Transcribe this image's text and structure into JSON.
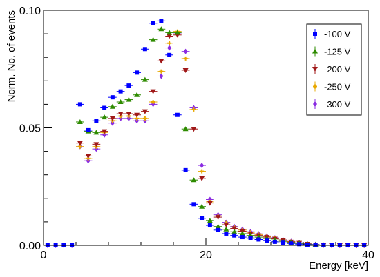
{
  "chart_data": {
    "type": "scatter",
    "xlabel": "Energy [keV]",
    "ylabel": "Norm. No. of events",
    "xlim": [
      0,
      40
    ],
    "ylim": [
      0,
      0.1
    ],
    "x_ticks": [
      "0",
      "20",
      "40"
    ],
    "y_ticks": [
      "0.00",
      "0.05",
      "0.10"
    ],
    "grid": false,
    "legend_position": "top-right",
    "series": [
      {
        "name": "-100 V",
        "color": "#0000ff",
        "marker": "square",
        "x": [
          0.5,
          1.5,
          2.5,
          3.5,
          4.5,
          5.5,
          6.5,
          7.5,
          8.5,
          9.5,
          10.5,
          11.5,
          12.5,
          13.5,
          14.5,
          15.5,
          16.5,
          17.5,
          18.5,
          19.5,
          20.5,
          21.5,
          22.5,
          23.5,
          24.5,
          25.5,
          26.5,
          27.5,
          28.5,
          29.5,
          30.5,
          31.5,
          32.5,
          33.5,
          34.5,
          35.5,
          36.5,
          37.5,
          38.5,
          39.5
        ],
        "y": [
          0.0,
          0.0,
          0.0,
          0.0,
          0.06,
          0.049,
          0.053,
          0.0585,
          0.063,
          0.0655,
          0.068,
          0.0735,
          0.0835,
          0.0945,
          0.0955,
          0.081,
          0.0555,
          0.032,
          0.0175,
          0.0115,
          0.0085,
          0.0065,
          0.005,
          0.0042,
          0.0035,
          0.003,
          0.0025,
          0.002,
          0.0015,
          0.0011,
          0.0008,
          0.0005,
          0.0003,
          0.0002,
          0.0001,
          0.0,
          0.0,
          0.0,
          0.0,
          0.0
        ]
      },
      {
        "name": "-125 V",
        "color": "#2e8b00",
        "marker": "triangle-up",
        "x": [
          4.5,
          5.5,
          6.5,
          7.5,
          8.5,
          9.5,
          10.5,
          11.5,
          12.5,
          13.5,
          14.5,
          15.5,
          16.5,
          17.5,
          18.5,
          19.5,
          20.5,
          21.5,
          22.5,
          23.5,
          24.5,
          25.5,
          26.5,
          27.5,
          28.5,
          29.5,
          30.5,
          31.5,
          32.5,
          33.5,
          34.5,
          35.5,
          36.5,
          37.5,
          38.5,
          39.5
        ],
        "y": [
          0.0525,
          0.0485,
          0.048,
          0.0545,
          0.059,
          0.061,
          0.062,
          0.064,
          0.0705,
          0.0875,
          0.092,
          0.0905,
          0.0905,
          0.0495,
          0.0278,
          0.0165,
          0.0105,
          0.008,
          0.0068,
          0.0058,
          0.005,
          0.0042,
          0.0035,
          0.0029,
          0.0023,
          0.0017,
          0.0012,
          0.0008,
          0.0005,
          0.0003,
          0.0001,
          0.0,
          0.0,
          0.0,
          0.0,
          0.0
        ]
      },
      {
        "name": "-200 V",
        "color": "#a01818",
        "marker": "triangle-down",
        "x": [
          4.5,
          5.5,
          6.5,
          7.5,
          8.5,
          9.5,
          10.5,
          11.5,
          12.5,
          13.5,
          14.5,
          15.5,
          16.5,
          17.5,
          18.5,
          19.5,
          20.5,
          21.5,
          22.5,
          23.5,
          24.5,
          25.5,
          26.5,
          27.5,
          28.5,
          29.5,
          30.5,
          31.5,
          32.5,
          33.5,
          34.5,
          35.5,
          36.5,
          37.5,
          38.5,
          39.5
        ],
        "y": [
          0.0435,
          0.038,
          0.043,
          0.0485,
          0.054,
          0.056,
          0.056,
          0.0555,
          0.057,
          0.0655,
          0.0785,
          0.089,
          0.0895,
          0.0745,
          0.0495,
          0.0285,
          0.018,
          0.012,
          0.0088,
          0.0072,
          0.006,
          0.005,
          0.0042,
          0.0035,
          0.0028,
          0.0021,
          0.0015,
          0.001,
          0.0006,
          0.0003,
          0.0001,
          0.0,
          0.0,
          0.0,
          0.0,
          0.0
        ]
      },
      {
        "name": "-250 V",
        "color": "#e8a800",
        "marker": "cross",
        "x": [
          0.5,
          1.5,
          2.5,
          3.5,
          4.5,
          5.5,
          6.5,
          7.5,
          8.5,
          9.5,
          10.5,
          11.5,
          12.5,
          13.5,
          14.5,
          15.5,
          16.5,
          17.5,
          18.5,
          19.5,
          20.5,
          21.5,
          22.5,
          23.5,
          24.5,
          25.5,
          26.5,
          27.5,
          28.5,
          29.5,
          30.5,
          31.5,
          32.5,
          33.5,
          34.5,
          35.5,
          36.5,
          37.5,
          38.5,
          39.5
        ],
        "y": [
          0.0,
          0.0,
          0.0,
          0.0,
          0.042,
          0.037,
          0.042,
          0.048,
          0.053,
          0.055,
          0.055,
          0.054,
          0.054,
          0.061,
          0.074,
          0.086,
          0.091,
          0.0795,
          0.0578,
          0.0315,
          0.0185,
          0.0125,
          0.0095,
          0.0078,
          0.0065,
          0.0055,
          0.0046,
          0.0038,
          0.003,
          0.0023,
          0.0016,
          0.001,
          0.0006,
          0.0003,
          0.0001,
          0.0,
          0.0,
          0.0,
          0.0,
          0.0
        ]
      },
      {
        "name": "-300 V",
        "color": "#8a2be2",
        "marker": "diamond",
        "x": [
          0.5,
          1.5,
          2.5,
          3.5,
          4.5,
          5.5,
          6.5,
          7.5,
          8.5,
          9.5,
          10.5,
          11.5,
          12.5,
          13.5,
          14.5,
          15.5,
          16.5,
          17.5,
          18.5,
          19.5,
          20.5,
          21.5,
          22.5,
          23.5,
          24.5,
          25.5,
          26.5,
          27.5,
          28.5,
          29.5,
          30.5,
          31.5,
          32.5,
          33.5,
          34.5,
          35.5,
          36.5,
          37.5,
          38.5,
          39.5
        ],
        "y": [
          0.0,
          0.0,
          0.0,
          0.0,
          0.042,
          0.036,
          0.041,
          0.047,
          0.052,
          0.054,
          0.054,
          0.053,
          0.053,
          0.06,
          0.072,
          0.084,
          0.09,
          0.0825,
          0.0585,
          0.034,
          0.0195,
          0.013,
          0.0098,
          0.008,
          0.0068,
          0.0058,
          0.0049,
          0.004,
          0.0032,
          0.0024,
          0.0017,
          0.0011,
          0.0007,
          0.0004,
          0.0001,
          0.0,
          0.0,
          0.0,
          0.0,
          0.0
        ]
      }
    ]
  }
}
